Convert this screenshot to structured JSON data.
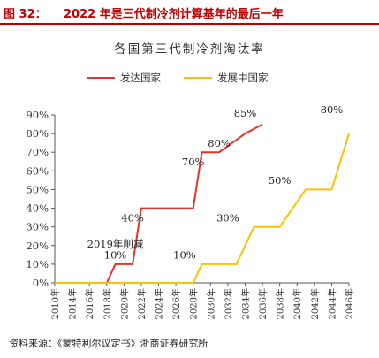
{
  "figure": {
    "number": "图 32：",
    "title": "2022 年是三代制冷剂计算基年的最后一年"
  },
  "source": "资料来源：《蒙特利尔议定书》浙商证券研究所",
  "chart_data": {
    "type": "line",
    "title": "各国第三代制冷剂淘汰率",
    "x": [
      "2010年",
      "2014年",
      "2016年",
      "2018年",
      "2020年",
      "2022年",
      "2024年",
      "2026年",
      "2028年",
      "2030年",
      "2032年",
      "2034年",
      "2036年",
      "2038年",
      "2040年",
      "2042年",
      "2044年",
      "2046年"
    ],
    "y_ticks": [
      "0%",
      "10%",
      "20%",
      "30%",
      "40%",
      "50%",
      "60%",
      "70%",
      "80%",
      "90%"
    ],
    "ylim": [
      0,
      90
    ],
    "legend_position": "top-center",
    "grid": false,
    "series": [
      {
        "name": "发达国家",
        "color": "#e8312a",
        "points": [
          [
            "2010年",
            0
          ],
          [
            "2018年",
            0
          ],
          [
            "2019年",
            10
          ],
          [
            "2021年",
            10
          ],
          [
            "2022年",
            40
          ],
          [
            "2028年",
            40
          ],
          [
            "2029年",
            70
          ],
          [
            "2031年",
            70
          ],
          [
            "2034年",
            80
          ],
          [
            "2036年",
            85
          ]
        ]
      },
      {
        "name": "发展中国家",
        "color": "#ffc000",
        "points": [
          [
            "2010年",
            0
          ],
          [
            "2028年",
            0
          ],
          [
            "2029年",
            10
          ],
          [
            "2033年",
            10
          ],
          [
            "2035年",
            30
          ],
          [
            "2038年",
            30
          ],
          [
            "2041年",
            50
          ],
          [
            "2044年",
            50
          ],
          [
            "2046年",
            80
          ]
        ]
      }
    ],
    "annotations": [
      {
        "text": "2019年削减",
        "x": "2019年",
        "y": 19
      },
      {
        "text": "10%",
        "x": "2019年",
        "y": 13
      },
      {
        "text": "40%",
        "x": "2021年",
        "y": 33
      },
      {
        "text": "70%",
        "x": "2028年",
        "y": 63
      },
      {
        "text": "80%",
        "x": "2031年",
        "y": 73
      },
      {
        "text": "85%",
        "x": "2034年",
        "y": 89
      },
      {
        "text": "10%",
        "x": "2027年",
        "y": 13
      },
      {
        "text": "30%",
        "x": "2032年",
        "y": 33
      },
      {
        "text": "50%",
        "x": "2038年",
        "y": 53
      },
      {
        "text": "80%",
        "x": "2044年",
        "y": 91
      }
    ]
  }
}
